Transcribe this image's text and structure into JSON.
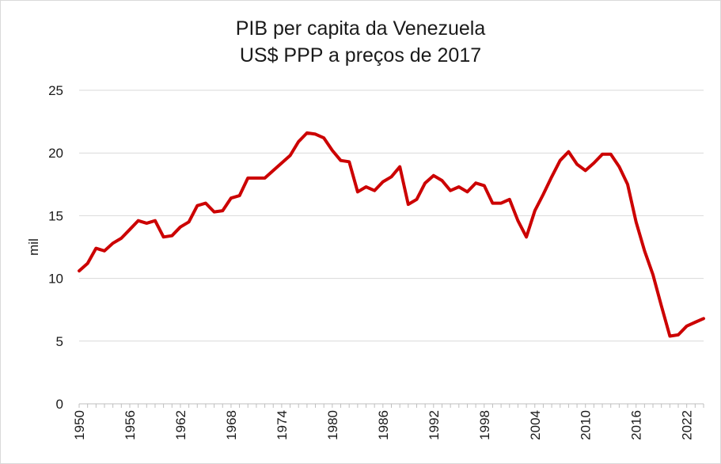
{
  "chart_data": {
    "type": "line",
    "title": "PIB per capita da Venezuela",
    "subtitle": "US$ PPP a preços de 2017",
    "xlabel": "",
    "ylabel": "mil",
    "xlim": [
      1950,
      2024
    ],
    "ylim": [
      0,
      25
    ],
    "y_ticks": [
      0,
      5,
      10,
      15,
      20,
      25
    ],
    "y_tick_labels": [
      "0",
      "5",
      "10",
      "15",
      "20",
      "25"
    ],
    "x_ticks": [
      1950,
      1956,
      1962,
      1968,
      1974,
      1980,
      1986,
      1992,
      1998,
      2004,
      2010,
      2016,
      2022
    ],
    "x_tick_labels": [
      "1950",
      "1956",
      "1962",
      "1968",
      "1974",
      "1980",
      "1986",
      "1992",
      "1998",
      "2004",
      "2010",
      "2016",
      "2022"
    ],
    "grid": true,
    "series": [
      {
        "name": "PIB per capita",
        "color": "#cc0000",
        "x": [
          1950,
          1951,
          1952,
          1953,
          1954,
          1955,
          1956,
          1957,
          1958,
          1959,
          1960,
          1961,
          1962,
          1963,
          1964,
          1965,
          1966,
          1967,
          1968,
          1969,
          1970,
          1971,
          1972,
          1973,
          1974,
          1975,
          1976,
          1977,
          1978,
          1979,
          1980,
          1981,
          1982,
          1983,
          1984,
          1985,
          1986,
          1987,
          1988,
          1989,
          1990,
          1991,
          1992,
          1993,
          1994,
          1995,
          1996,
          1997,
          1998,
          1999,
          2000,
          2001,
          2002,
          2003,
          2004,
          2005,
          2006,
          2007,
          2008,
          2009,
          2010,
          2011,
          2012,
          2013,
          2014,
          2015,
          2016,
          2017,
          2018,
          2019,
          2020,
          2021,
          2022,
          2023,
          2024
        ],
        "values": [
          10.6,
          11.2,
          12.4,
          12.2,
          12.8,
          13.2,
          13.9,
          14.6,
          14.4,
          14.6,
          13.3,
          13.4,
          14.1,
          14.5,
          15.8,
          16.0,
          15.3,
          15.4,
          16.4,
          16.6,
          18.0,
          18.0,
          18.0,
          18.6,
          19.2,
          19.8,
          20.9,
          21.6,
          21.5,
          21.2,
          20.2,
          19.4,
          19.3,
          16.9,
          17.3,
          17.0,
          17.7,
          18.1,
          18.9,
          15.9,
          16.3,
          17.6,
          18.2,
          17.8,
          17.0,
          17.3,
          16.9,
          17.6,
          17.4,
          16.0,
          16.0,
          16.3,
          14.6,
          13.3,
          15.4,
          16.7,
          18.1,
          19.4,
          20.1,
          19.1,
          18.6,
          19.2,
          19.9,
          19.9,
          18.9,
          17.5,
          14.5,
          12.2,
          10.3,
          7.8,
          5.4,
          5.5,
          6.2,
          6.5,
          6.8
        ]
      }
    ]
  }
}
